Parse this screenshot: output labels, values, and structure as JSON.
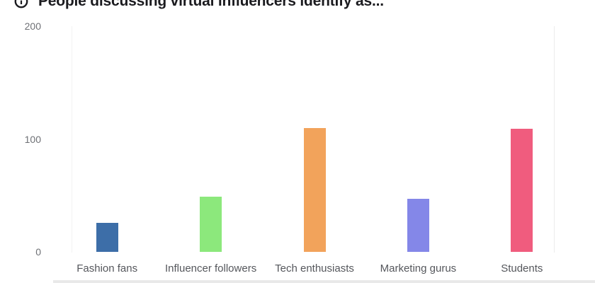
{
  "header": {
    "title": "People discussing virtual influencers identify as...",
    "info_icon": "info-circle-icon"
  },
  "chart_data": {
    "type": "bar",
    "title": "People discussing virtual influencers identify as...",
    "categories": [
      "Fashion fans",
      "Influencer followers",
      "Tech enthusiasts",
      "Marketing gurus",
      "Students"
    ],
    "values": [
      26,
      49,
      110,
      47,
      109
    ],
    "bar_colors": [
      "#3d6ea8",
      "#8ce87c",
      "#f2a35b",
      "#8487e8",
      "#f05c7e"
    ],
    "xlabel": "",
    "ylabel": "",
    "yticks": [
      0,
      100,
      200
    ],
    "ylim": [
      0,
      200
    ],
    "grid": "off",
    "legend": "none"
  },
  "colors": {
    "title_text": "#1b1b1f",
    "axis_tick_label": "#6e7075",
    "category_label": "#55575c",
    "background": "#ffffff",
    "plot_edge_line_left": "#f2f2f2",
    "plot_edge_line_right": "#ececec",
    "bottom_strip": "#e9e9e9"
  }
}
